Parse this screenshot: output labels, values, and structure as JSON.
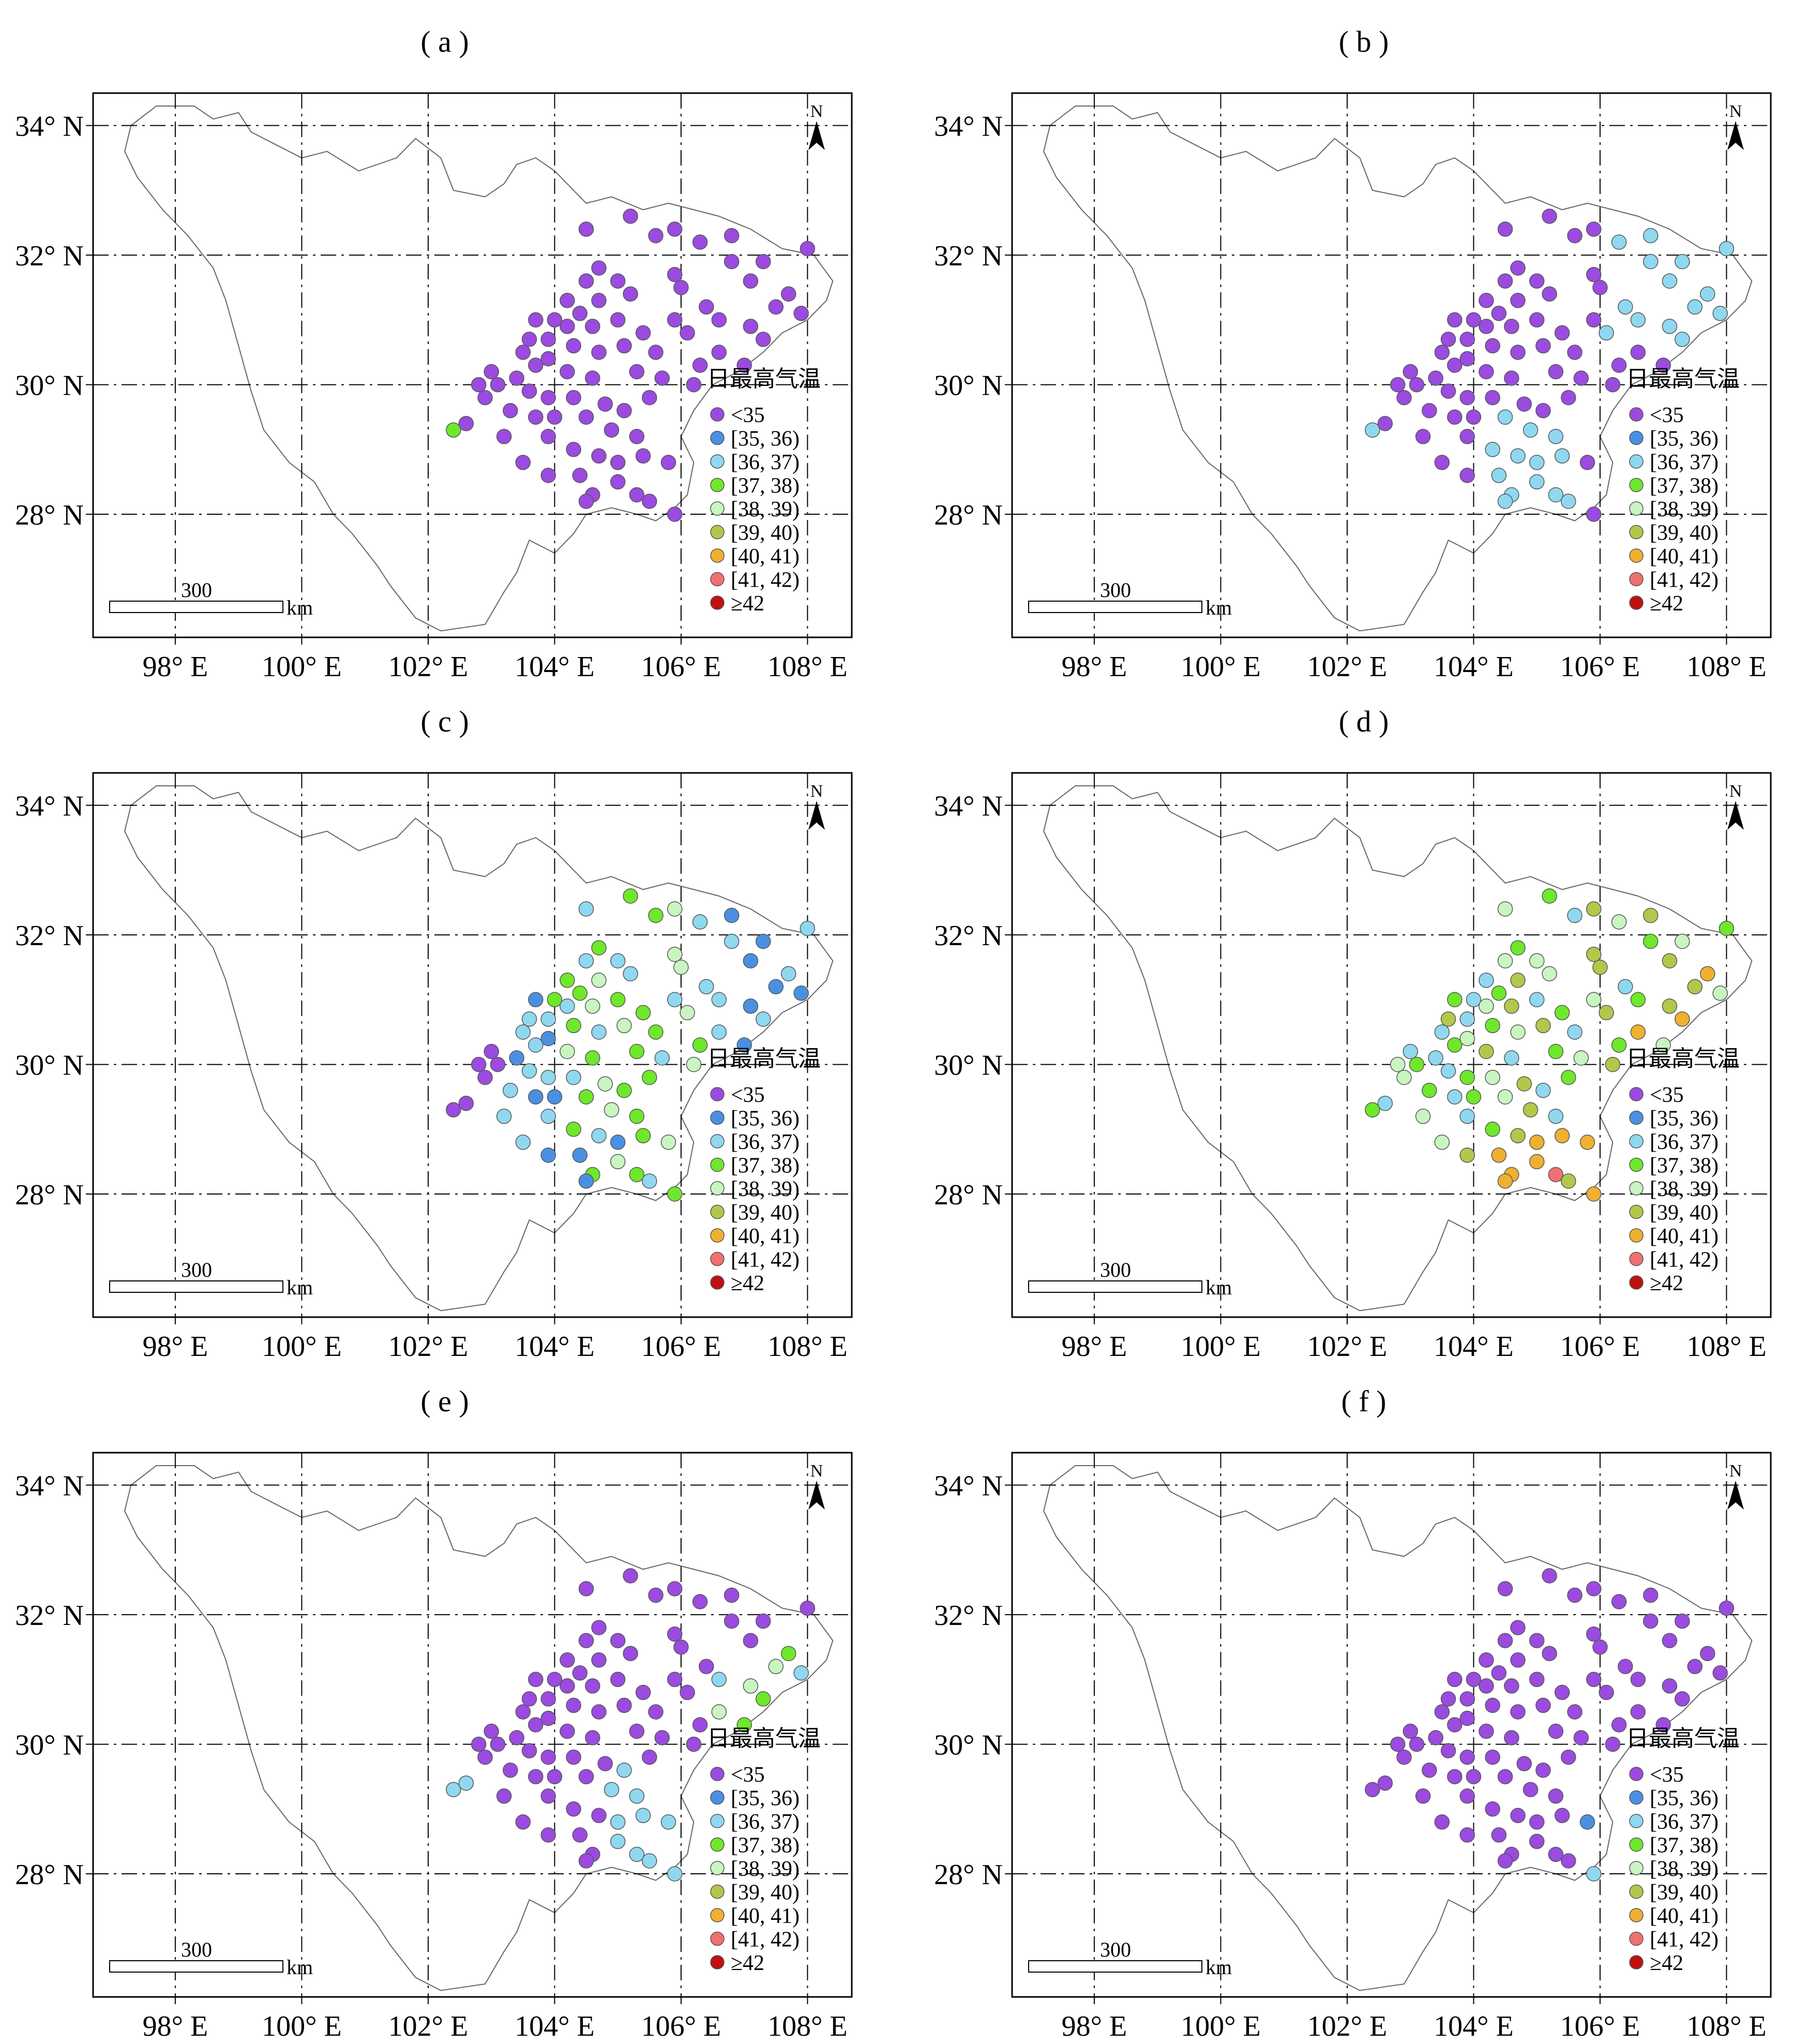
{
  "panels": [
    {
      "label": "( a )",
      "scheme": "a"
    },
    {
      "label": "( b )",
      "scheme": "b"
    },
    {
      "label": "( c )",
      "scheme": "c"
    },
    {
      "label": "( d )",
      "scheme": "d"
    },
    {
      "label": "( e )",
      "scheme": "e"
    },
    {
      "label": "( f )",
      "scheme": "f"
    }
  ],
  "lat_labels": [
    "34° N",
    "32° N",
    "30° N",
    "28° N"
  ],
  "lon_labels": [
    "98° E",
    "100° E",
    "102° E",
    "104° E",
    "106° E",
    "108° E"
  ],
  "north_label": "N",
  "scale_label": "300",
  "scale_unit": "km",
  "legend": {
    "title": "日最高气温",
    "items": [
      {
        "label": "<35",
        "color": "#9b4be0"
      },
      {
        "label": "[35, 36)",
        "color": "#4a90e2"
      },
      {
        "label": "[36, 37)",
        "color": "#8fd8f0"
      },
      {
        "label": "[37, 38)",
        "color": "#6ee82a"
      },
      {
        "label": "[38, 39)",
        "color": "#c9f5c0"
      },
      {
        "label": "[39, 40)",
        "color": "#b2c84a"
      },
      {
        "label": "[40, 41)",
        "color": "#f0b030"
      },
      {
        "label": "[41, 42)",
        "color": "#f07070"
      },
      {
        "label": "≥42",
        "color": "#c01010"
      }
    ]
  },
  "chart_data": {
    "type": "scatter",
    "lon_range": [
      96.7,
      108.7
    ],
    "lat_range": [
      26.1,
      34.5
    ],
    "stations": [
      [
        105.2,
        32.6
      ],
      [
        104.5,
        32.4
      ],
      [
        105.9,
        32.4
      ],
      [
        105.6,
        32.3
      ],
      [
        106.8,
        32.3
      ],
      [
        106.3,
        32.2
      ],
      [
        107.3,
        31.9
      ],
      [
        108.0,
        32.1
      ],
      [
        104.7,
        31.8
      ],
      [
        105.0,
        31.6
      ],
      [
        105.9,
        31.7
      ],
      [
        106.8,
        31.9
      ],
      [
        107.1,
        31.6
      ],
      [
        104.5,
        31.6
      ],
      [
        104.7,
        31.3
      ],
      [
        104.2,
        31.3
      ],
      [
        104.4,
        31.1
      ],
      [
        105.2,
        31.4
      ],
      [
        106.0,
        31.5
      ],
      [
        106.4,
        31.2
      ],
      [
        107.5,
        31.2
      ],
      [
        107.7,
        31.4
      ],
      [
        107.9,
        31.1
      ],
      [
        104.0,
        31.0
      ],
      [
        103.7,
        31.0
      ],
      [
        104.2,
        30.9
      ],
      [
        104.6,
        30.9
      ],
      [
        105.0,
        31.0
      ],
      [
        105.4,
        30.8
      ],
      [
        105.9,
        31.0
      ],
      [
        106.1,
        30.8
      ],
      [
        106.6,
        31.0
      ],
      [
        107.1,
        30.9
      ],
      [
        107.3,
        30.7
      ],
      [
        103.6,
        30.7
      ],
      [
        103.9,
        30.7
      ],
      [
        104.3,
        30.6
      ],
      [
        104.7,
        30.5
      ],
      [
        105.1,
        30.6
      ],
      [
        105.6,
        30.5
      ],
      [
        106.3,
        30.3
      ],
      [
        106.6,
        30.5
      ],
      [
        107.0,
        30.3
      ],
      [
        103.5,
        30.5
      ],
      [
        103.7,
        30.3
      ],
      [
        103.9,
        30.4
      ],
      [
        104.2,
        30.2
      ],
      [
        104.6,
        30.1
      ],
      [
        105.3,
        30.2
      ],
      [
        105.7,
        30.1
      ],
      [
        106.2,
        30.0
      ],
      [
        103.0,
        30.2
      ],
      [
        102.8,
        30.0
      ],
      [
        103.1,
        30.0
      ],
      [
        103.4,
        30.1
      ],
      [
        103.6,
        29.9
      ],
      [
        103.9,
        29.8
      ],
      [
        104.3,
        29.8
      ],
      [
        104.8,
        29.7
      ],
      [
        105.1,
        29.6
      ],
      [
        105.5,
        29.8
      ],
      [
        102.9,
        29.8
      ],
      [
        103.3,
        29.6
      ],
      [
        103.7,
        29.5
      ],
      [
        104.0,
        29.5
      ],
      [
        104.5,
        29.5
      ],
      [
        104.9,
        29.3
      ],
      [
        105.3,
        29.2
      ],
      [
        102.4,
        29.3
      ],
      [
        102.6,
        29.4
      ],
      [
        103.2,
        29.2
      ],
      [
        103.9,
        29.2
      ],
      [
        104.3,
        29.0
      ],
      [
        104.7,
        28.9
      ],
      [
        105.0,
        28.8
      ],
      [
        105.4,
        28.9
      ],
      [
        105.8,
        28.8
      ],
      [
        103.5,
        28.8
      ],
      [
        103.9,
        28.6
      ],
      [
        104.4,
        28.6
      ],
      [
        104.6,
        28.3
      ],
      [
        105.0,
        28.5
      ],
      [
        105.3,
        28.3
      ],
      [
        105.5,
        28.2
      ],
      [
        104.5,
        28.2
      ],
      [
        105.9,
        28.0
      ]
    ]
  }
}
